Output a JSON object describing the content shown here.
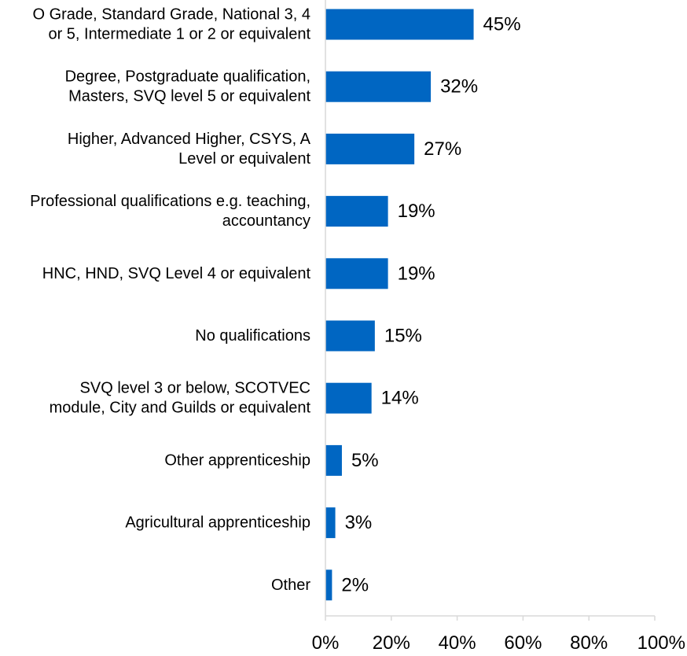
{
  "chart_data": {
    "type": "bar",
    "orientation": "horizontal",
    "title": "",
    "xlabel": "",
    "ylabel": "",
    "categories": [
      [
        "O Grade, Standard Grade, National 3, 4",
        "or 5, Intermediate 1 or 2 or equivalent"
      ],
      [
        "Degree, Postgraduate qualification,",
        "Masters, SVQ level 5 or equivalent"
      ],
      [
        "Higher, Advanced Higher, CSYS, A",
        "Level or equivalent"
      ],
      [
        "Professional qualifications e.g. teaching,",
        "accountancy"
      ],
      [
        "HNC, HND, SVQ Level 4 or equivalent"
      ],
      [
        "No qualifications"
      ],
      [
        "SVQ level 3 or below, SCOTVEC",
        "module, City and Guilds or equivalent"
      ],
      [
        "Other apprenticeship"
      ],
      [
        "Agricultural apprenticeship"
      ],
      [
        "Other"
      ]
    ],
    "values": [
      45,
      32,
      27,
      19,
      19,
      15,
      14,
      5,
      3,
      2
    ],
    "data_labels": [
      "45%",
      "32%",
      "27%",
      "19%",
      "19%",
      "15%",
      "14%",
      "5%",
      "3%",
      "2%"
    ],
    "xlim": [
      0,
      100
    ],
    "x_ticks": [
      0,
      20,
      40,
      60,
      80,
      100
    ],
    "x_tick_labels": [
      "0%",
      "20%",
      "40%",
      "60%",
      "80%",
      "100%"
    ],
    "grid": false,
    "legend": "none",
    "colors": {
      "bar": "#0066c2",
      "axis": "#d9d9d9",
      "text": "#000000"
    }
  }
}
